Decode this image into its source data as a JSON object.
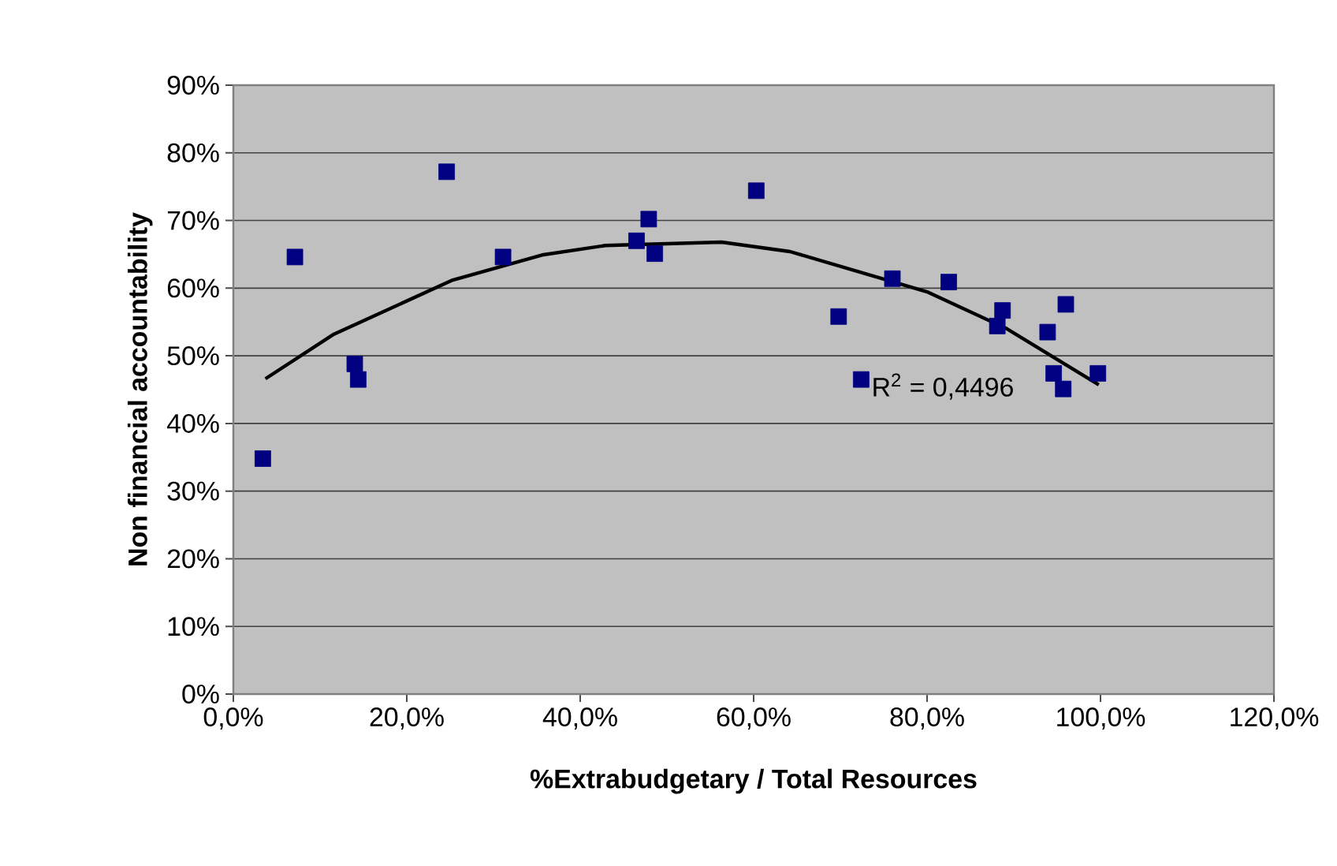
{
  "chart_data": {
    "type": "scatter",
    "xlabel": "%Extrabudgetary / Total Resources",
    "ylabel": "Non financial accountability",
    "xlim": [
      0,
      120
    ],
    "ylim": [
      0,
      90
    ],
    "xticks": [
      {
        "value": 0,
        "label": "0,0%"
      },
      {
        "value": 20,
        "label": "20,0%"
      },
      {
        "value": 40,
        "label": "40,0%"
      },
      {
        "value": 60,
        "label": "60,0%"
      },
      {
        "value": 80,
        "label": "80,0%"
      },
      {
        "value": 100,
        "label": "100,0%"
      },
      {
        "value": 120,
        "label": "120,0%"
      }
    ],
    "yticks": [
      {
        "value": 0,
        "label": "0%"
      },
      {
        "value": 10,
        "label": "10%"
      },
      {
        "value": 20,
        "label": "20%"
      },
      {
        "value": 30,
        "label": "30%"
      },
      {
        "value": 40,
        "label": "40%"
      },
      {
        "value": 50,
        "label": "50%"
      },
      {
        "value": 60,
        "label": "60%"
      },
      {
        "value": 70,
        "label": "70%"
      },
      {
        "value": 80,
        "label": "80%"
      },
      {
        "value": 90,
        "label": "90%"
      }
    ],
    "grid": "y",
    "series": [
      {
        "marker": "square",
        "color": "#000080",
        "x": [
          3.4,
          7.1,
          14.0,
          14.4,
          24.6,
          31.1,
          46.5,
          47.9,
          48.6,
          60.3,
          69.8,
          72.4,
          76.0,
          82.5,
          88.1,
          88.7,
          93.9,
          94.6,
          95.7,
          96.0,
          99.7
        ],
        "values": [
          34.8,
          64.6,
          48.8,
          46.5,
          77.2,
          64.6,
          67.0,
          70.2,
          65.1,
          74.4,
          55.8,
          46.5,
          61.4,
          60.9,
          54.4,
          56.7,
          53.5,
          47.4,
          45.1,
          57.6,
          47.4
        ]
      },
      {
        "type": "line",
        "marker": "none",
        "color": "#000000",
        "x": [
          3.7,
          11.6,
          25.3,
          35.6,
          42.9,
          56.3,
          64.2,
          80.1,
          89.2,
          99.8
        ],
        "values": [
          46.6,
          53.2,
          61.2,
          64.9,
          66.3,
          66.8,
          65.4,
          59.4,
          54.0,
          45.7
        ]
      }
    ],
    "annotations": [
      "R$^{2}$ = 0,4496"
    ]
  }
}
